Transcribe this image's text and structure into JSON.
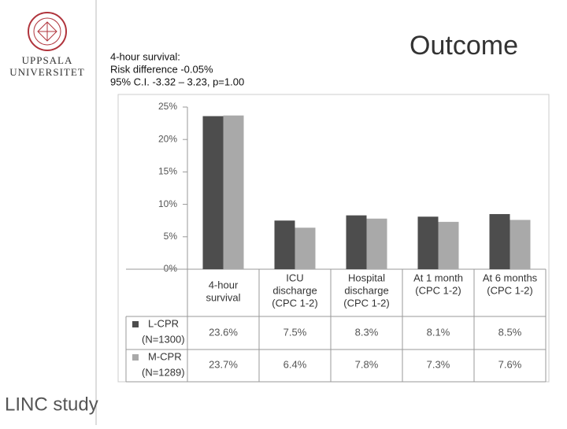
{
  "branding": {
    "university": [
      "UPPSALA",
      "UNIVERSITET"
    ],
    "study": "LINC study"
  },
  "chart_data": {
    "type": "bar",
    "title": "Outcome",
    "annotation": [
      "4-hour survival:",
      "Risk difference -0.05%",
      "95% C.I. -3.32 – 3.23, p=1.00"
    ],
    "categories": [
      [
        "4-hour",
        "survival"
      ],
      [
        "ICU",
        "discharge",
        "(CPC 1-2)"
      ],
      [
        "Hospital",
        "discharge",
        "(CPC 1-2)"
      ],
      [
        "At 1 month",
        "(CPC 1-2)"
      ],
      [
        "At 6 months",
        "(CPC 1-2)"
      ]
    ],
    "series": [
      {
        "name": "L-CPR",
        "sample": "(N=1300)",
        "color": "#4d4d4d",
        "values": [
          23.6,
          7.5,
          8.3,
          8.1,
          8.5
        ],
        "value_labels": [
          "23.6%",
          "7.5%",
          "8.3%",
          "8.1%",
          "8.5%"
        ]
      },
      {
        "name": "M-CPR",
        "sample": "(N=1289)",
        "color": "#a9a9a9",
        "values": [
          23.7,
          6.4,
          7.8,
          7.3,
          7.6
        ],
        "value_labels": [
          "23.7%",
          "6.4%",
          "7.8%",
          "7.3%",
          "7.6%"
        ]
      }
    ],
    "ylim": [
      0,
      25
    ],
    "yticks": [
      {
        "value": 0,
        "label": "0%"
      },
      {
        "value": 5,
        "label": "5%"
      },
      {
        "value": 10,
        "label": "10%"
      },
      {
        "value": 15,
        "label": "15%"
      },
      {
        "value": 20,
        "label": "20%"
      },
      {
        "value": 25,
        "label": "25%"
      }
    ]
  }
}
